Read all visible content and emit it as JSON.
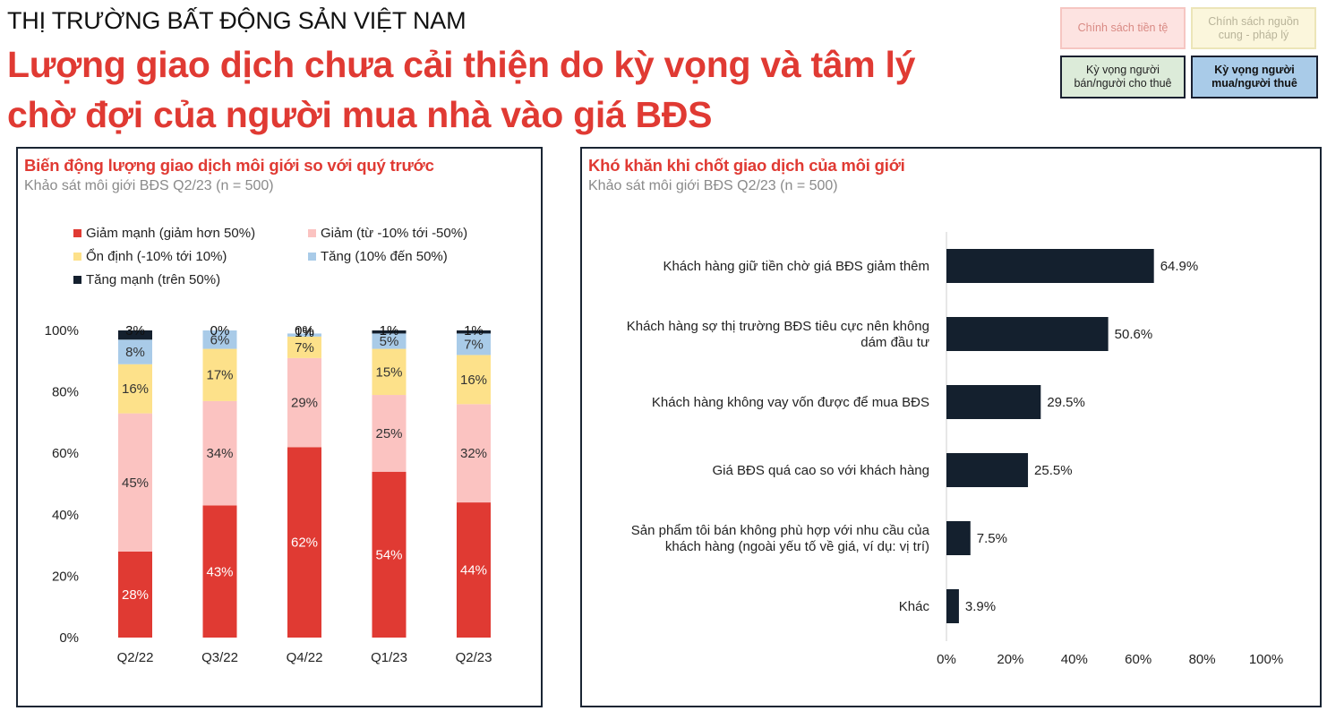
{
  "header": {
    "kicker": "THỊ TRƯỜNG BẤT ĐỘNG SẢN VIỆT NAM",
    "headline": "Lượng giao dịch chưa cải thiện do kỳ vọng và tâm lý chờ đợi của người mua nhà vào giá BĐS"
  },
  "tags": [
    {
      "label": "Chính sách tiền tệ"
    },
    {
      "label": "Chính sách nguồn cung - pháp lý"
    },
    {
      "label": "Kỳ vọng người bán/người cho thuê"
    },
    {
      "label": "Kỳ vọng người mua/người thuê"
    }
  ],
  "colors": {
    "strong_decrease": "#e03a33",
    "decrease": "#fbc3c1",
    "stable": "#fde18a",
    "increase": "#a9cbe8",
    "strong_increase": "#14202e",
    "hbar": "#14202e"
  },
  "chart_data": [
    {
      "type": "bar",
      "stacked": true,
      "title": "Biến động lượng giao dịch môi giới so với quý trước",
      "subtitle": "Khảo sát môi giới BĐS Q2/23 (n = 500)",
      "categories": [
        "Q2/22",
        "Q3/22",
        "Q4/22",
        "Q1/23",
        "Q2/23"
      ],
      "series": [
        {
          "name": "Giảm mạnh (giảm hơn 50%)",
          "values": [
            28,
            43,
            62,
            54,
            44
          ]
        },
        {
          "name": "Giảm (từ -10% tới -50%)",
          "values": [
            45,
            34,
            29,
            25,
            32
          ]
        },
        {
          "name": "Ổn định (-10% tới 10%)",
          "values": [
            16,
            17,
            7,
            15,
            16
          ]
        },
        {
          "name": "Tăng (10% đến 50%)",
          "values": [
            8,
            6,
            1,
            5,
            7
          ]
        },
        {
          "name": "Tăng mạnh (trên 50%)",
          "values": [
            3,
            0,
            0,
            1,
            1
          ]
        }
      ],
      "yticks": [
        "0%",
        "20%",
        "40%",
        "60%",
        "80%",
        "100%"
      ],
      "ylim": [
        0,
        100
      ],
      "legend_position": "top"
    },
    {
      "type": "bar",
      "orientation": "horizontal",
      "title": "Khó khăn khi chốt giao dịch của môi giới",
      "subtitle": "Khảo sát môi giới BĐS Q2/23 (n = 500)",
      "categories": [
        [
          "Khách hàng giữ tiền chờ giá BĐS giảm thêm"
        ],
        [
          "Khách hàng sợ thị trường BĐS tiêu cực nên không",
          "dám đầu tư"
        ],
        [
          "Khách hàng không vay vốn được để mua BĐS"
        ],
        [
          "Giá BĐS quá cao so với khách hàng"
        ],
        [
          "Sản phẩm tôi bán không phù hợp với nhu cầu của",
          "khách hàng (ngoài yếu tố về giá, ví dụ: vị trí)"
        ],
        [
          "Khác"
        ]
      ],
      "values": [
        64.9,
        50.6,
        29.5,
        25.5,
        7.5,
        3.9
      ],
      "value_labels": [
        "64.9%",
        "50.6%",
        "29.5%",
        "25.5%",
        "7.5%",
        "3.9%"
      ],
      "xticks": [
        "0%",
        "20%",
        "40%",
        "60%",
        "80%",
        "100%"
      ],
      "xlim": [
        0,
        100
      ]
    }
  ]
}
